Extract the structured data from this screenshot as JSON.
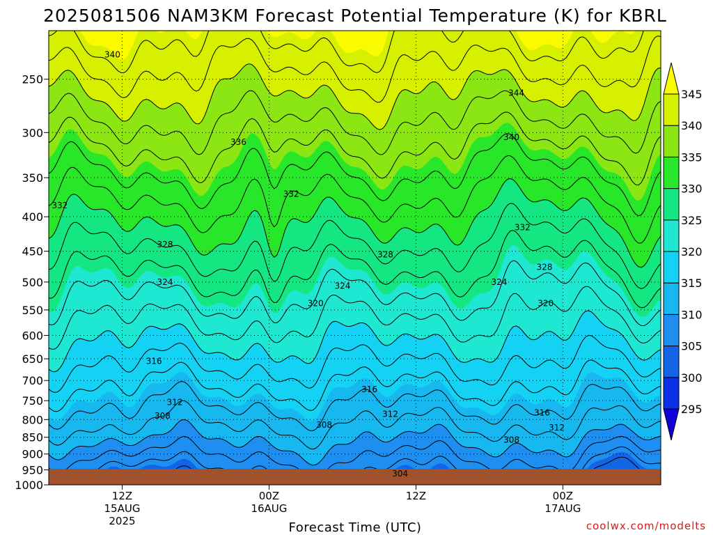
{
  "title": "2025081506 NAM3KM Forecast Potential Temperature (K) for KBRL",
  "credit": "coolwx.com/modelts",
  "chart_data": {
    "type": "contour",
    "title": "2025081506 NAM3KM Forecast Potential Temperature (K) for KBRL",
    "xlabel": "Forecast Time (UTC)",
    "ylabel": "",
    "y_scale": "log-pressure",
    "ylim": [
      1000,
      200
    ],
    "xlim": [
      0,
      50
    ],
    "grid": true,
    "y_ticks": [
      {
        "v": 250,
        "label": "250"
      },
      {
        "v": 300,
        "label": "300"
      },
      {
        "v": 350,
        "label": "350"
      },
      {
        "v": 400,
        "label": "400"
      },
      {
        "v": 450,
        "label": "450"
      },
      {
        "v": 500,
        "label": "500"
      },
      {
        "v": 550,
        "label": "550"
      },
      {
        "v": 600,
        "label": "600"
      },
      {
        "v": 650,
        "label": "650"
      },
      {
        "v": 700,
        "label": "700"
      },
      {
        "v": 750,
        "label": "750"
      },
      {
        "v": 800,
        "label": "800"
      },
      {
        "v": 850,
        "label": "850"
      },
      {
        "v": 900,
        "label": "900"
      },
      {
        "v": 950,
        "label": "950"
      },
      {
        "v": 1000,
        "label": "1000"
      }
    ],
    "x_ticks": [
      {
        "t": 6,
        "lines": [
          "12Z",
          "15AUG",
          "2025"
        ]
      },
      {
        "t": 18,
        "lines": [
          "00Z",
          "16AUG"
        ]
      },
      {
        "t": 30,
        "lines": [
          "12Z"
        ]
      },
      {
        "t": 42,
        "lines": [
          "00Z",
          "17AUG"
        ]
      },
      {
        "t": 54,
        "lines": [
          "12Z"
        ]
      }
    ],
    "colorbar": {
      "levels": [
        295,
        300,
        305,
        310,
        315,
        320,
        325,
        330,
        335,
        340,
        345
      ],
      "labels": [
        "295",
        "300",
        "305",
        "310",
        "315",
        "320",
        "325",
        "330",
        "335",
        "340",
        "345"
      ],
      "colors": [
        "#1200d8",
        "#0a2fe6",
        "#1464e6",
        "#1e8ef0",
        "#17b8f0",
        "#14d2f4",
        "#1ee8d2",
        "#14e682",
        "#28e628",
        "#8ce614",
        "#d6f000",
        "#fafa00"
      ]
    },
    "ground_color": "#a0522d",
    "contour_levels": [
      304,
      306,
      308,
      310,
      312,
      314,
      316,
      318,
      320,
      322,
      324,
      326,
      328,
      330,
      332,
      334,
      336,
      338,
      340,
      342,
      344
    ],
    "contour_labels": [
      {
        "text": "340",
        "t": 5.2,
        "p": 230
      },
      {
        "text": "344",
        "t": 38.2,
        "p": 262
      },
      {
        "text": "336",
        "t": 15.5,
        "p": 310
      },
      {
        "text": "340",
        "t": 37.8,
        "p": 305
      },
      {
        "text": "332",
        "t": 0.9,
        "p": 385
      },
      {
        "text": "332",
        "t": 19.8,
        "p": 370
      },
      {
        "text": "332",
        "t": 38.7,
        "p": 415
      },
      {
        "text": "328",
        "t": 9.5,
        "p": 440
      },
      {
        "text": "328",
        "t": 27.5,
        "p": 455
      },
      {
        "text": "328",
        "t": 40.5,
        "p": 475
      },
      {
        "text": "324",
        "t": 9.5,
        "p": 500
      },
      {
        "text": "324",
        "t": 24.0,
        "p": 507
      },
      {
        "text": "324",
        "t": 36.8,
        "p": 500
      },
      {
        "text": "320",
        "t": 21.8,
        "p": 538
      },
      {
        "text": "320",
        "t": 40.6,
        "p": 538
      },
      {
        "text": "316",
        "t": 8.6,
        "p": 655
      },
      {
        "text": "316",
        "t": 26.2,
        "p": 722
      },
      {
        "text": "316",
        "t": 40.3,
        "p": 782
      },
      {
        "text": "312",
        "t": 10.3,
        "p": 754
      },
      {
        "text": "312",
        "t": 27.9,
        "p": 785
      },
      {
        "text": "312",
        "t": 41.5,
        "p": 823
      },
      {
        "text": "308",
        "t": 9.3,
        "p": 790
      },
      {
        "text": "308",
        "t": 22.5,
        "p": 815
      },
      {
        "text": "308",
        "t": 37.8,
        "p": 858
      },
      {
        "text": "304",
        "t": 28.7,
        "p": 963
      }
    ]
  }
}
